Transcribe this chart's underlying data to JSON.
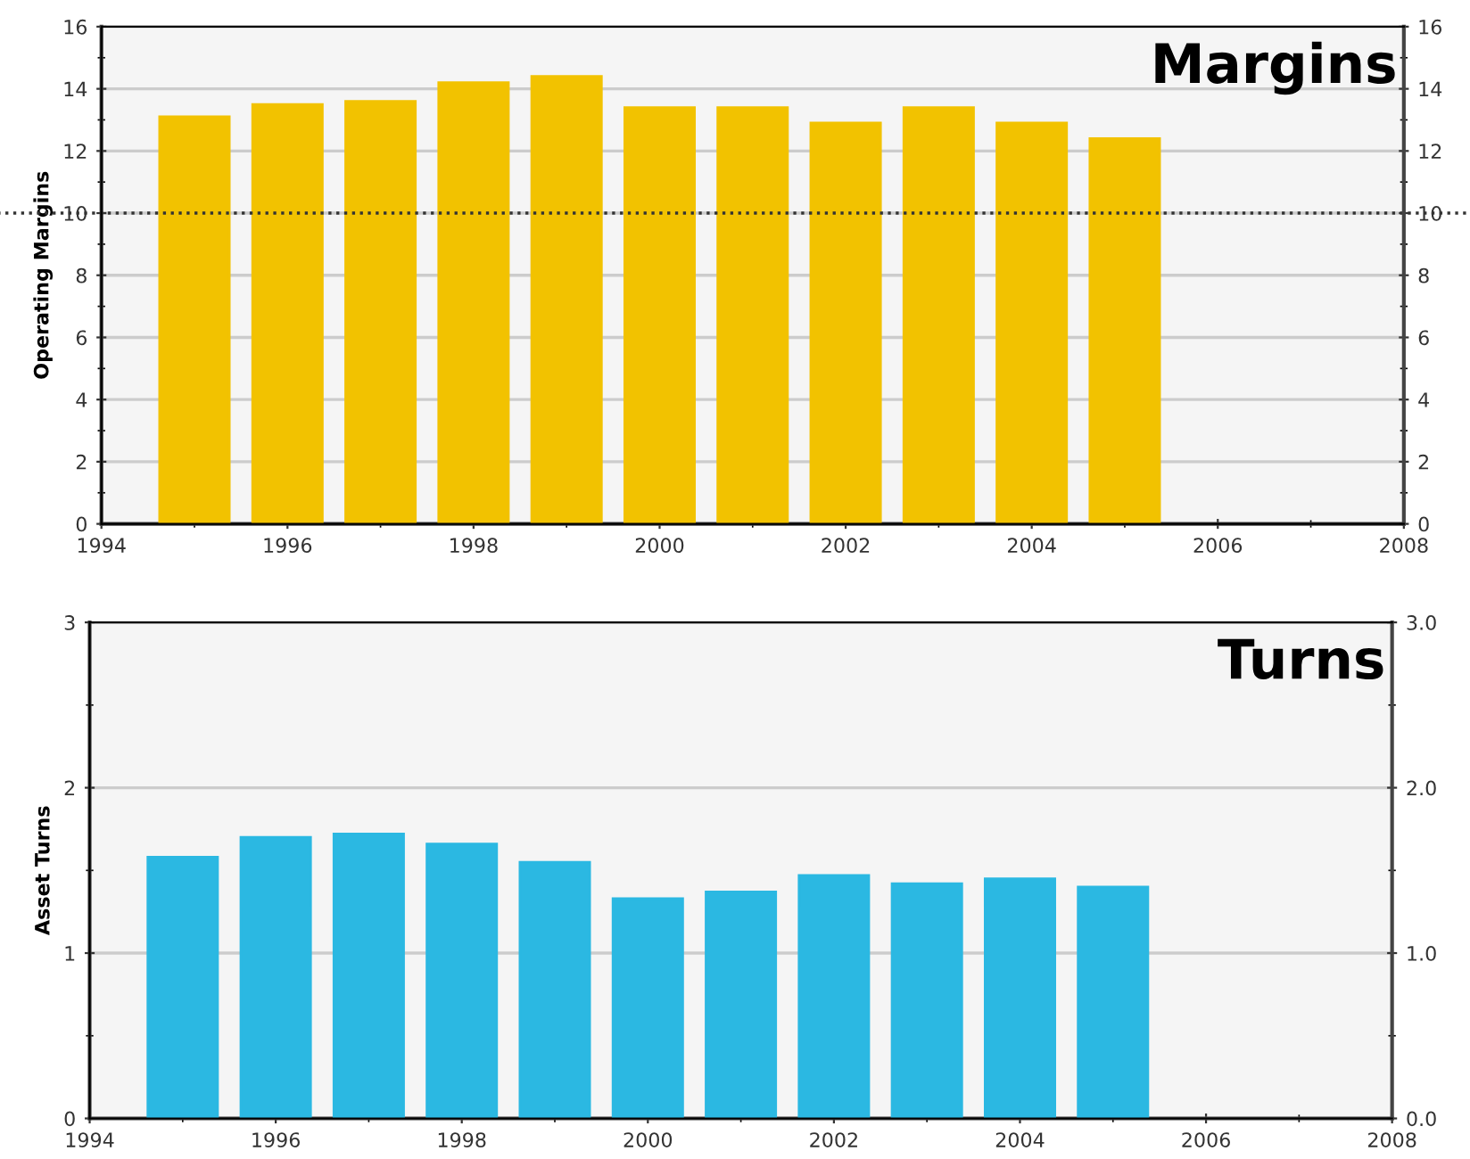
{
  "chart_data": [
    {
      "type": "bar",
      "title": "Margins",
      "ylabel": "Operating Margins",
      "x": [
        1995,
        1996,
        1997,
        1998,
        1999,
        2000,
        2001,
        2002,
        2003,
        2004,
        2005
      ],
      "values": [
        13.1,
        13.5,
        13.6,
        14.2,
        14.4,
        13.4,
        13.4,
        12.9,
        13.4,
        12.9,
        12.4
      ],
      "color": "#f2c200",
      "xlim": [
        1994,
        2008
      ],
      "xticks": [
        1994,
        1996,
        1998,
        2000,
        2002,
        2004,
        2006,
        2008
      ],
      "ylim": [
        0,
        16
      ],
      "yticks": [
        0,
        2,
        4,
        6,
        8,
        10,
        12,
        14,
        16
      ],
      "y2lim": [
        0,
        16
      ],
      "y2ticks": [
        0,
        2,
        4,
        6,
        8,
        10,
        12,
        14,
        16
      ],
      "grid": "y",
      "ref_lines": [
        {
          "axis": "y",
          "value": 10,
          "line_style": "dotted",
          "color": "#333333"
        }
      ]
    },
    {
      "type": "bar",
      "title": "Turns",
      "ylabel": "Asset Turns",
      "x": [
        1995,
        1996,
        1997,
        1998,
        1999,
        2000,
        2001,
        2002,
        2003,
        2004,
        2005
      ],
      "values": [
        1.58,
        1.7,
        1.72,
        1.66,
        1.55,
        1.33,
        1.37,
        1.47,
        1.42,
        1.45,
        1.4
      ],
      "color": "#2bb8e2",
      "xlim": [
        1994,
        2008
      ],
      "xticks": [
        1994,
        1996,
        1998,
        2000,
        2002,
        2004,
        2006,
        2008
      ],
      "ylim": [
        0,
        3
      ],
      "yticks": [
        0,
        1,
        2,
        3
      ],
      "y2lim": [
        0,
        3
      ],
      "y2ticks": [
        {
          "value": 0,
          "label": "0.0"
        },
        {
          "value": 1,
          "label": "1.0"
        },
        {
          "value": 2,
          "label": "2.0"
        },
        {
          "value": 3,
          "label": "3.0"
        }
      ],
      "grid": "y"
    }
  ]
}
